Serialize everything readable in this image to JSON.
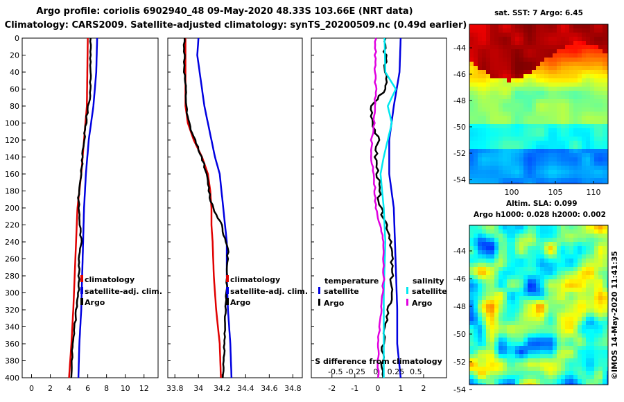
{
  "header": {
    "line1": "Argo profile: coriolis 6902940_48 09-May-2020 48.33S 103.66E (NRT data)",
    "line2": "Climatology: CARS2009. Satellite-adjusted climatology: synTS_20200509.nc (0.49d earlier)"
  },
  "colors": {
    "climatology": "#e00000",
    "satellite": "#0000e0",
    "argo": "#000000",
    "sal_satellite": "#00e8f0",
    "sal_argo": "#e000e0"
  },
  "chart_data": [
    {
      "type": "line",
      "name": "temperature",
      "ylabel": "depth",
      "ylim": [
        0,
        400
      ],
      "yticks": [
        0,
        20,
        40,
        60,
        80,
        100,
        120,
        140,
        160,
        180,
        200,
        220,
        240,
        260,
        280,
        300,
        320,
        340,
        360,
        380,
        400
      ],
      "xlim": [
        -1,
        13.5
      ],
      "xticks": [
        0,
        2,
        4,
        6,
        8,
        10,
        12
      ],
      "xtick_labels": [
        "0",
        "2",
        "4",
        "6",
        "8",
        "10",
        "12"
      ],
      "legend": [
        "climatology",
        "satellite-adj. clim.",
        "Argo"
      ],
      "series": [
        {
          "name": "climatology",
          "depth": [
            0,
            40,
            80,
            120,
            160,
            200,
            240,
            280,
            320,
            360,
            400
          ],
          "values": [
            6.0,
            5.95,
            5.9,
            5.6,
            5.3,
            4.9,
            4.75,
            4.6,
            4.45,
            4.25,
            4.0
          ]
        },
        {
          "name": "satellite-adj. clim.",
          "depth": [
            0,
            40,
            80,
            120,
            160,
            200,
            240,
            280,
            320,
            360,
            400
          ],
          "values": [
            7.0,
            6.9,
            6.6,
            6.1,
            5.8,
            5.6,
            5.5,
            5.4,
            5.3,
            5.1,
            5.0
          ]
        },
        {
          "name": "Argo",
          "depth": [
            0,
            40,
            70,
            90,
            110,
            130,
            160,
            190,
            210,
            240,
            260,
            300,
            330,
            360,
            380,
            400
          ],
          "values": [
            6.3,
            6.3,
            6.2,
            5.9,
            5.7,
            5.5,
            5.3,
            5.0,
            5.1,
            5.3,
            5.1,
            5.0,
            4.7,
            4.4,
            4.3,
            4.2
          ]
        }
      ]
    },
    {
      "type": "line",
      "name": "salinity",
      "ylim": [
        0,
        400
      ],
      "xlim": [
        33.74,
        34.88
      ],
      "xticks": [
        33.8,
        34.0,
        34.2,
        34.4,
        34.6,
        34.8
      ],
      "xtick_labels": [
        "33.8",
        "34",
        "34.2",
        "34.4",
        "34.6",
        "34.8"
      ],
      "legend": [
        "climatology",
        "satellite-adj. clim.",
        "Argo"
      ],
      "series": [
        {
          "name": "climatology",
          "depth": [
            0,
            40,
            80,
            100,
            120,
            140,
            160,
            180,
            200,
            220,
            240,
            280,
            320,
            360,
            400
          ],
          "values": [
            33.89,
            33.89,
            33.89,
            33.91,
            33.96,
            34.03,
            34.08,
            34.1,
            34.11,
            34.11,
            34.12,
            34.13,
            34.15,
            34.18,
            34.19
          ]
        },
        {
          "name": "satellite-adj. clim.",
          "depth": [
            0,
            20,
            40,
            60,
            80,
            100,
            120,
            140,
            160,
            200,
            240,
            280,
            320,
            360,
            400
          ],
          "values": [
            34.0,
            33.99,
            34.01,
            34.03,
            34.05,
            34.08,
            34.11,
            34.14,
            34.18,
            34.21,
            34.24,
            34.24,
            34.25,
            34.27,
            34.28
          ]
        },
        {
          "name": "Argo",
          "depth": [
            0,
            40,
            60,
            90,
            110,
            130,
            150,
            170,
            190,
            205,
            220,
            235,
            250,
            290,
            320,
            360,
            400
          ],
          "values": [
            33.88,
            33.88,
            33.89,
            33.9,
            33.94,
            34.0,
            34.05,
            34.08,
            34.1,
            34.14,
            34.2,
            34.22,
            34.25,
            34.24,
            34.23,
            34.22,
            34.21
          ]
        }
      ]
    },
    {
      "type": "line",
      "name": "difference from climatology",
      "ylim": [
        0,
        400
      ],
      "xlim": [
        -2.9,
        3.0
      ],
      "xticks": [
        -2,
        -1,
        0,
        1,
        2
      ],
      "xtick_labels": [
        "-2",
        "-1",
        "0",
        "1",
        "2"
      ],
      "sub_xlim": [
        -0.8,
        0.88
      ],
      "sub_xticks": [
        -0.5,
        -0.25,
        0,
        0.25,
        0.5
      ],
      "sub_xtick_labels": [
        "-0.5",
        "-0.25",
        "0",
        "0.25",
        "0.5"
      ],
      "sub_axis_label": "S difference from climatology",
      "legend_temperature": {
        "title": "temperature",
        "items": [
          "satellite",
          "Argo"
        ]
      },
      "legend_salinity": {
        "title": "salinity",
        "items": [
          "satellite",
          "Argo"
        ]
      },
      "series": [
        {
          "name": "temperature satellite",
          "axis": "T",
          "depth": [
            0,
            40,
            80,
            120,
            160,
            200,
            240,
            280,
            320,
            360,
            400
          ],
          "values": [
            1.0,
            0.95,
            0.7,
            0.5,
            0.5,
            0.7,
            0.75,
            0.8,
            0.85,
            0.85,
            1.0
          ]
        },
        {
          "name": "temperature Argo",
          "axis": "T",
          "depth": [
            0,
            60,
            80,
            100,
            120,
            140,
            160,
            200,
            220,
            240,
            300,
            360,
            400
          ],
          "values": [
            0.3,
            0.35,
            -0.3,
            -0.2,
            0.0,
            -0.1,
            0.0,
            0.1,
            0.4,
            0.6,
            0.6,
            0.2,
            0.2
          ]
        },
        {
          "name": "salinity satellite",
          "axis": "S",
          "depth": [
            0,
            40,
            60,
            80,
            100,
            120,
            140,
            160,
            200,
            240,
            300,
            360,
            400
          ],
          "values": [
            0.11,
            0.12,
            0.25,
            0.15,
            0.2,
            0.15,
            0.1,
            0.06,
            0.1,
            0.12,
            0.1,
            0.1,
            0.1
          ]
        },
        {
          "name": "salinity Argo",
          "axis": "S",
          "depth": [
            0,
            40,
            60,
            100,
            120,
            140,
            160,
            200,
            220,
            240,
            280,
            320,
            360,
            400
          ],
          "values": [
            0.0,
            -0.01,
            0.0,
            -0.02,
            -0.05,
            -0.06,
            -0.02,
            0.0,
            0.05,
            0.1,
            0.1,
            0.07,
            0.03,
            0.03
          ]
        }
      ]
    }
  ],
  "maps": {
    "sst": {
      "title": "sat. SST: 7 Argo: 6.45",
      "yticks": [
        "-44",
        "-46",
        "-48",
        "-50",
        "-52",
        "-54"
      ],
      "xticks": [
        "100",
        "105",
        "110"
      ]
    },
    "altim": {
      "title1": "Altim. SLA: 0.099",
      "title2": "Argo h1000: 0.028 h2000: 0.002",
      "yticks": [
        "-44",
        "-46",
        "-48",
        "-50",
        "-52",
        "-54"
      ]
    }
  },
  "footer": {
    "imprint": "©IMOS 14-May-2020 11:41:35"
  }
}
